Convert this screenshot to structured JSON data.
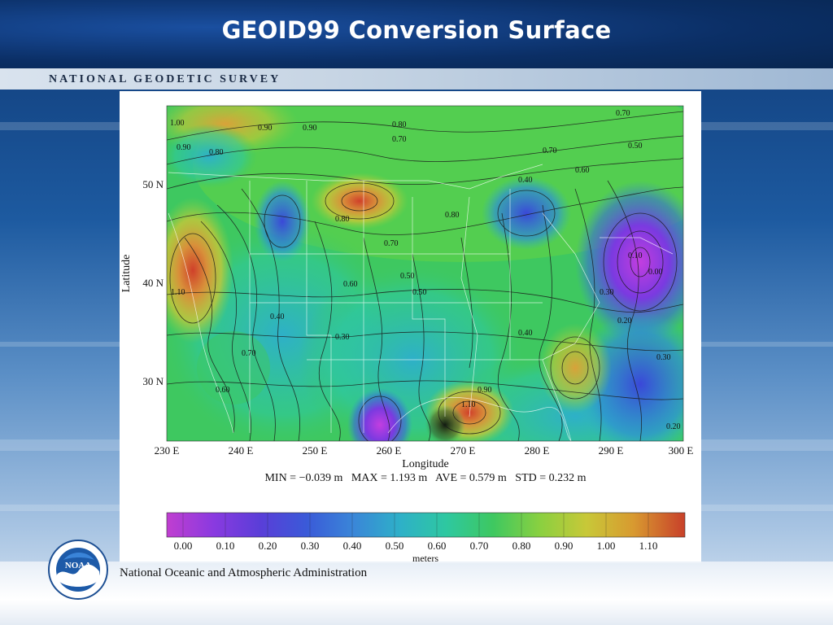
{
  "slide": {
    "title": "GEOID99 Conversion Surface",
    "org_name": "NATIONAL GEODETIC SURVEY",
    "footer": "National Oceanic and Atmospheric Administration",
    "noaa_logo_text": "NOAA"
  },
  "map": {
    "x_axis_label": "Longitude",
    "y_axis_label": "Latitude",
    "x_ticks": [
      "230 E",
      "240 E",
      "250 E",
      "260 E",
      "270 E",
      "280 E",
      "290 E",
      "300 E"
    ],
    "y_ticks": [
      "50 N",
      "40 N",
      "30 N"
    ],
    "stats": "MIN = −0.039 m   MAX = 1.193 m   AVE = 0.579 m   STD = 0.232 m",
    "contour_labels": [
      "1.00",
      "0.90",
      "0.90",
      "0.90",
      "0.80",
      "0.80",
      "0.80",
      "0.70",
      "0.70",
      "0.70",
      "0.70",
      "0.60",
      "0.60",
      "0.50",
      "0.50",
      "0.40",
      "0.40",
      "0.30",
      "0.30",
      "0.20",
      "0.10",
      "0.00",
      "1.10",
      "1.10",
      "0.90",
      "0.80",
      "0.70",
      "0.60",
      "0.50",
      "0.40",
      "0.30",
      "0.20"
    ]
  },
  "colorbar": {
    "ticks": [
      "0.00",
      "0.10",
      "0.20",
      "0.30",
      "0.40",
      "0.50",
      "0.60",
      "0.70",
      "0.80",
      "0.90",
      "1.00",
      "1.10"
    ],
    "unit": "meters",
    "colors": [
      "#c040d0",
      "#8a3ae0",
      "#5a3ed8",
      "#3a5ad8",
      "#3a86d8",
      "#2eb0c8",
      "#2ec8a0",
      "#3ec860",
      "#8ad040",
      "#c8c838",
      "#d89a30",
      "#c8482a"
    ]
  },
  "colors": {
    "title": "#ffffff",
    "accent_dark": "#0b2f66"
  }
}
